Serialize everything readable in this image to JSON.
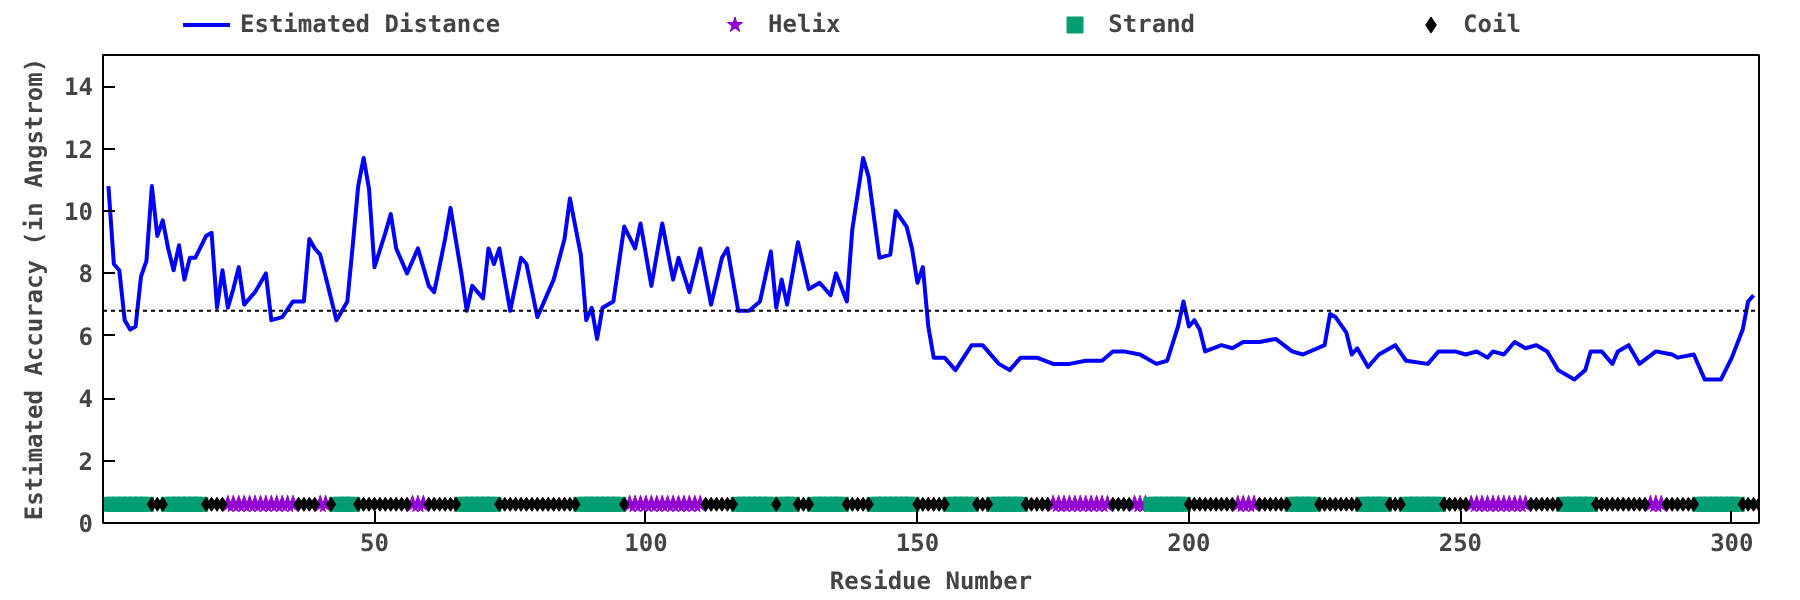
{
  "chart_data": {
    "type": "line",
    "xlabel": "Residue Number",
    "ylabel": "Estimated Accuracy (in Angstrom)",
    "xlim": [
      0,
      305
    ],
    "ylim": [
      0,
      15
    ],
    "xticks": [
      50,
      100,
      150,
      200,
      250,
      300
    ],
    "yticks": [
      0,
      2,
      4,
      6,
      8,
      10,
      12,
      14
    ],
    "grid": false,
    "legend": "top",
    "ref_lines": [
      {
        "axis": "y",
        "value": 6.8,
        "color": "#000000",
        "line_style": "dotted"
      }
    ],
    "series": [
      {
        "name": "Estimated Distance",
        "color": "#0000ff",
        "line_style": "solid",
        "x": [
          1,
          2,
          3,
          4,
          5,
          6,
          7,
          8,
          9,
          10,
          11,
          12,
          13,
          14,
          15,
          16,
          17,
          19,
          20,
          21,
          22,
          23,
          24,
          25,
          26,
          28,
          30,
          31,
          33,
          35,
          37,
          38,
          39,
          40,
          43,
          45,
          46,
          47,
          48,
          49,
          50,
          52,
          53,
          54,
          56,
          58,
          60,
          61,
          63,
          64,
          66,
          67,
          68,
          70,
          71,
          72,
          73,
          75,
          77,
          78,
          80,
          83,
          85,
          86,
          88,
          89,
          90,
          91,
          92,
          94,
          96,
          98,
          99,
          101,
          103,
          105,
          106,
          108,
          110,
          112,
          114,
          115,
          117,
          119,
          121,
          123,
          124,
          125,
          126,
          128,
          130,
          132,
          134,
          135,
          137,
          138,
          140,
          141,
          143,
          145,
          146,
          148,
          149,
          150,
          151,
          152,
          153,
          155,
          157,
          160,
          162,
          165,
          167,
          169,
          172,
          175,
          178,
          181,
          184,
          186,
          188,
          191,
          194,
          196,
          198,
          199,
          200,
          201,
          202,
          203,
          206,
          208,
          210,
          213,
          216,
          219,
          221,
          225,
          226,
          227,
          229,
          230,
          231,
          233,
          235,
          238,
          240,
          244,
          246,
          249,
          251,
          253,
          255,
          256,
          258,
          260,
          262,
          264,
          266,
          268,
          271,
          273,
          274,
          276,
          278,
          279,
          281,
          283,
          286,
          289,
          290,
          293,
          295,
          298,
          300,
          302,
          303,
          304
        ],
        "values": [
          10.8,
          8.3,
          8.1,
          6.5,
          6.2,
          6.3,
          7.9,
          8.4,
          10.8,
          9.2,
          9.7,
          8.8,
          8.1,
          8.9,
          7.8,
          8.5,
          8.5,
          9.2,
          9.3,
          6.9,
          8.1,
          6.9,
          7.5,
          8.2,
          7.0,
          7.4,
          8.0,
          6.5,
          6.6,
          7.1,
          7.1,
          9.1,
          8.8,
          8.6,
          6.5,
          7.1,
          8.9,
          10.8,
          11.7,
          10.7,
          8.2,
          9.3,
          9.9,
          8.8,
          8.0,
          8.8,
          7.6,
          7.4,
          9.1,
          10.1,
          8.0,
          6.8,
          7.6,
          7.2,
          8.8,
          8.3,
          8.8,
          6.8,
          8.5,
          8.3,
          6.6,
          7.8,
          9.1,
          10.4,
          8.6,
          6.5,
          6.9,
          5.9,
          6.9,
          7.1,
          9.5,
          8.8,
          9.6,
          7.6,
          9.6,
          7.8,
          8.5,
          7.4,
          8.8,
          7.0,
          8.5,
          8.8,
          6.8,
          6.8,
          7.1,
          8.7,
          6.9,
          7.8,
          7.0,
          9.0,
          7.5,
          7.7,
          7.3,
          8.0,
          7.1,
          9.4,
          11.7,
          11.1,
          8.5,
          8.6,
          10.0,
          9.5,
          8.8,
          7.7,
          8.2,
          6.3,
          5.3,
          5.3,
          4.9,
          5.7,
          5.7,
          5.1,
          4.9,
          5.3,
          5.3,
          5.1,
          5.1,
          5.2,
          5.2,
          5.5,
          5.5,
          5.4,
          5.1,
          5.2,
          6.3,
          7.1,
          6.3,
          6.5,
          6.2,
          5.5,
          5.7,
          5.6,
          5.8,
          5.8,
          5.9,
          5.5,
          5.4,
          5.7,
          6.7,
          6.6,
          6.1,
          5.4,
          5.6,
          5.0,
          5.4,
          5.7,
          5.2,
          5.1,
          5.5,
          5.5,
          5.4,
          5.5,
          5.3,
          5.5,
          5.4,
          5.8,
          5.6,
          5.7,
          5.5,
          4.9,
          4.6,
          4.9,
          5.5,
          5.5,
          5.1,
          5.5,
          5.7,
          5.1,
          5.5,
          5.4,
          5.3,
          5.4,
          4.6,
          4.6,
          5.3,
          6.2,
          7.1,
          7.3
        ]
      },
      {
        "name": "Helix",
        "type": "scatter",
        "color": "#9400d3",
        "marker": "star",
        "x": [
          23,
          24,
          25,
          26,
          27,
          28,
          29,
          30,
          31,
          32,
          33,
          34,
          35,
          40,
          41,
          57,
          58,
          59,
          97,
          98,
          99,
          100,
          101,
          102,
          103,
          104,
          105,
          106,
          107,
          108,
          109,
          110,
          175,
          176,
          177,
          178,
          179,
          180,
          181,
          182,
          183,
          184,
          185,
          190,
          191,
          192,
          209,
          210,
          211,
          212,
          252,
          253,
          254,
          255,
          256,
          257,
          258,
          259,
          260,
          261,
          262,
          285,
          286,
          287
        ],
        "values": [
          0.6,
          0.6,
          0.6,
          0.6,
          0.6,
          0.6,
          0.6,
          0.6,
          0.6,
          0.6,
          0.6,
          0.6,
          0.6,
          0.6,
          0.6,
          0.6,
          0.6,
          0.6,
          0.6,
          0.6,
          0.6,
          0.6,
          0.6,
          0.6,
          0.6,
          0.6,
          0.6,
          0.6,
          0.6,
          0.6,
          0.6,
          0.6,
          0.6,
          0.6,
          0.6,
          0.6,
          0.6,
          0.6,
          0.6,
          0.6,
          0.6,
          0.6,
          0.6,
          0.6,
          0.6,
          0.6,
          0.6,
          0.6,
          0.6,
          0.6,
          0.6,
          0.6,
          0.6,
          0.6,
          0.6,
          0.6,
          0.6,
          0.6,
          0.6,
          0.6,
          0.6,
          0.6,
          0.6,
          0.6
        ]
      },
      {
        "name": "Strand",
        "type": "scatter",
        "color": "#009e73",
        "marker": "square",
        "x": [
          1,
          2,
          3,
          4,
          5,
          6,
          7,
          8,
          12,
          13,
          14,
          15,
          16,
          17,
          18,
          43,
          44,
          45,
          46,
          66,
          67,
          68,
          69,
          70,
          71,
          72,
          88,
          89,
          90,
          91,
          92,
          93,
          94,
          95,
          117,
          118,
          119,
          120,
          121,
          122,
          123,
          125,
          126,
          127,
          131,
          132,
          133,
          134,
          135,
          136,
          142,
          143,
          144,
          145,
          146,
          147,
          148,
          149,
          156,
          157,
          158,
          159,
          160,
          164,
          165,
          166,
          167,
          168,
          169,
          193,
          194,
          195,
          196,
          197,
          198,
          199,
          219,
          220,
          221,
          222,
          223,
          232,
          233,
          234,
          235,
          236,
          240,
          241,
          242,
          243,
          244,
          245,
          246,
          269,
          270,
          271,
          272,
          273,
          274,
          294,
          295,
          296,
          297,
          298,
          299,
          300,
          301
        ],
        "values": [
          0.6,
          0.6,
          0.6,
          0.6,
          0.6,
          0.6,
          0.6,
          0.6,
          0.6,
          0.6,
          0.6,
          0.6,
          0.6,
          0.6,
          0.6,
          0.6,
          0.6,
          0.6,
          0.6,
          0.6,
          0.6,
          0.6,
          0.6,
          0.6,
          0.6,
          0.6,
          0.6,
          0.6,
          0.6,
          0.6,
          0.6,
          0.6,
          0.6,
          0.6,
          0.6,
          0.6,
          0.6,
          0.6,
          0.6,
          0.6,
          0.6,
          0.6,
          0.6,
          0.6,
          0.6,
          0.6,
          0.6,
          0.6,
          0.6,
          0.6,
          0.6,
          0.6,
          0.6,
          0.6,
          0.6,
          0.6,
          0.6,
          0.6,
          0.6,
          0.6,
          0.6,
          0.6,
          0.6,
          0.6,
          0.6,
          0.6,
          0.6,
          0.6,
          0.6,
          0.6,
          0.6,
          0.6,
          0.6,
          0.6,
          0.6,
          0.6,
          0.6,
          0.6,
          0.6,
          0.6,
          0.6,
          0.6,
          0.6,
          0.6,
          0.6,
          0.6,
          0.6,
          0.6,
          0.6,
          0.6,
          0.6,
          0.6,
          0.6,
          0.6,
          0.6,
          0.6,
          0.6,
          0.6,
          0.6,
          0.6,
          0.6,
          0.6,
          0.6,
          0.6,
          0.6,
          0.6,
          0.6
        ]
      },
      {
        "name": "Coil",
        "type": "scatter",
        "color": "#000000",
        "marker": "diamond",
        "x": [
          9,
          10,
          11,
          19,
          20,
          21,
          22,
          36,
          37,
          38,
          39,
          42,
          47,
          48,
          49,
          50,
          51,
          52,
          53,
          54,
          55,
          56,
          60,
          61,
          62,
          63,
          64,
          65,
          73,
          74,
          75,
          76,
          77,
          78,
          79,
          80,
          81,
          82,
          83,
          84,
          85,
          86,
          87,
          96,
          111,
          112,
          113,
          114,
          115,
          116,
          124,
          128,
          129,
          130,
          137,
          138,
          139,
          140,
          141,
          150,
          151,
          152,
          153,
          154,
          155,
          161,
          162,
          163,
          170,
          171,
          172,
          173,
          174,
          186,
          187,
          188,
          189,
          200,
          201,
          202,
          203,
          204,
          205,
          206,
          207,
          208,
          213,
          214,
          215,
          216,
          217,
          218,
          224,
          225,
          226,
          227,
          228,
          229,
          230,
          231,
          237,
          238,
          239,
          247,
          248,
          249,
          250,
          251,
          263,
          264,
          265,
          266,
          267,
          268,
          275,
          276,
          277,
          278,
          279,
          280,
          281,
          282,
          283,
          284,
          288,
          289,
          290,
          291,
          292,
          293,
          302,
          303,
          304,
          305
        ],
        "values": [
          0.6,
          0.6,
          0.6,
          0.6,
          0.6,
          0.6,
          0.6,
          0.6,
          0.6,
          0.6,
          0.6,
          0.6,
          0.6,
          0.6,
          0.6,
          0.6,
          0.6,
          0.6,
          0.6,
          0.6,
          0.6,
          0.6,
          0.6,
          0.6,
          0.6,
          0.6,
          0.6,
          0.6,
          0.6,
          0.6,
          0.6,
          0.6,
          0.6,
          0.6,
          0.6,
          0.6,
          0.6,
          0.6,
          0.6,
          0.6,
          0.6,
          0.6,
          0.6,
          0.6,
          0.6,
          0.6,
          0.6,
          0.6,
          0.6,
          0.6,
          0.6,
          0.6,
          0.6,
          0.6,
          0.6,
          0.6,
          0.6,
          0.6,
          0.6,
          0.6,
          0.6,
          0.6,
          0.6,
          0.6,
          0.6,
          0.6,
          0.6,
          0.6,
          0.6,
          0.6,
          0.6,
          0.6,
          0.6,
          0.6,
          0.6,
          0.6,
          0.6,
          0.6,
          0.6,
          0.6,
          0.6,
          0.6,
          0.6,
          0.6,
          0.6,
          0.6,
          0.6,
          0.6,
          0.6,
          0.6,
          0.6,
          0.6,
          0.6,
          0.6,
          0.6,
          0.6,
          0.6,
          0.6,
          0.6,
          0.6,
          0.6,
          0.6,
          0.6,
          0.6,
          0.6,
          0.6,
          0.6,
          0.6,
          0.6,
          0.6,
          0.6,
          0.6,
          0.6,
          0.6,
          0.6,
          0.6,
          0.6,
          0.6,
          0.6,
          0.6,
          0.6,
          0.6,
          0.6,
          0.6,
          0.6,
          0.6,
          0.6,
          0.6,
          0.6,
          0.6,
          0.6,
          0.6,
          0.6,
          0.6
        ]
      }
    ]
  }
}
